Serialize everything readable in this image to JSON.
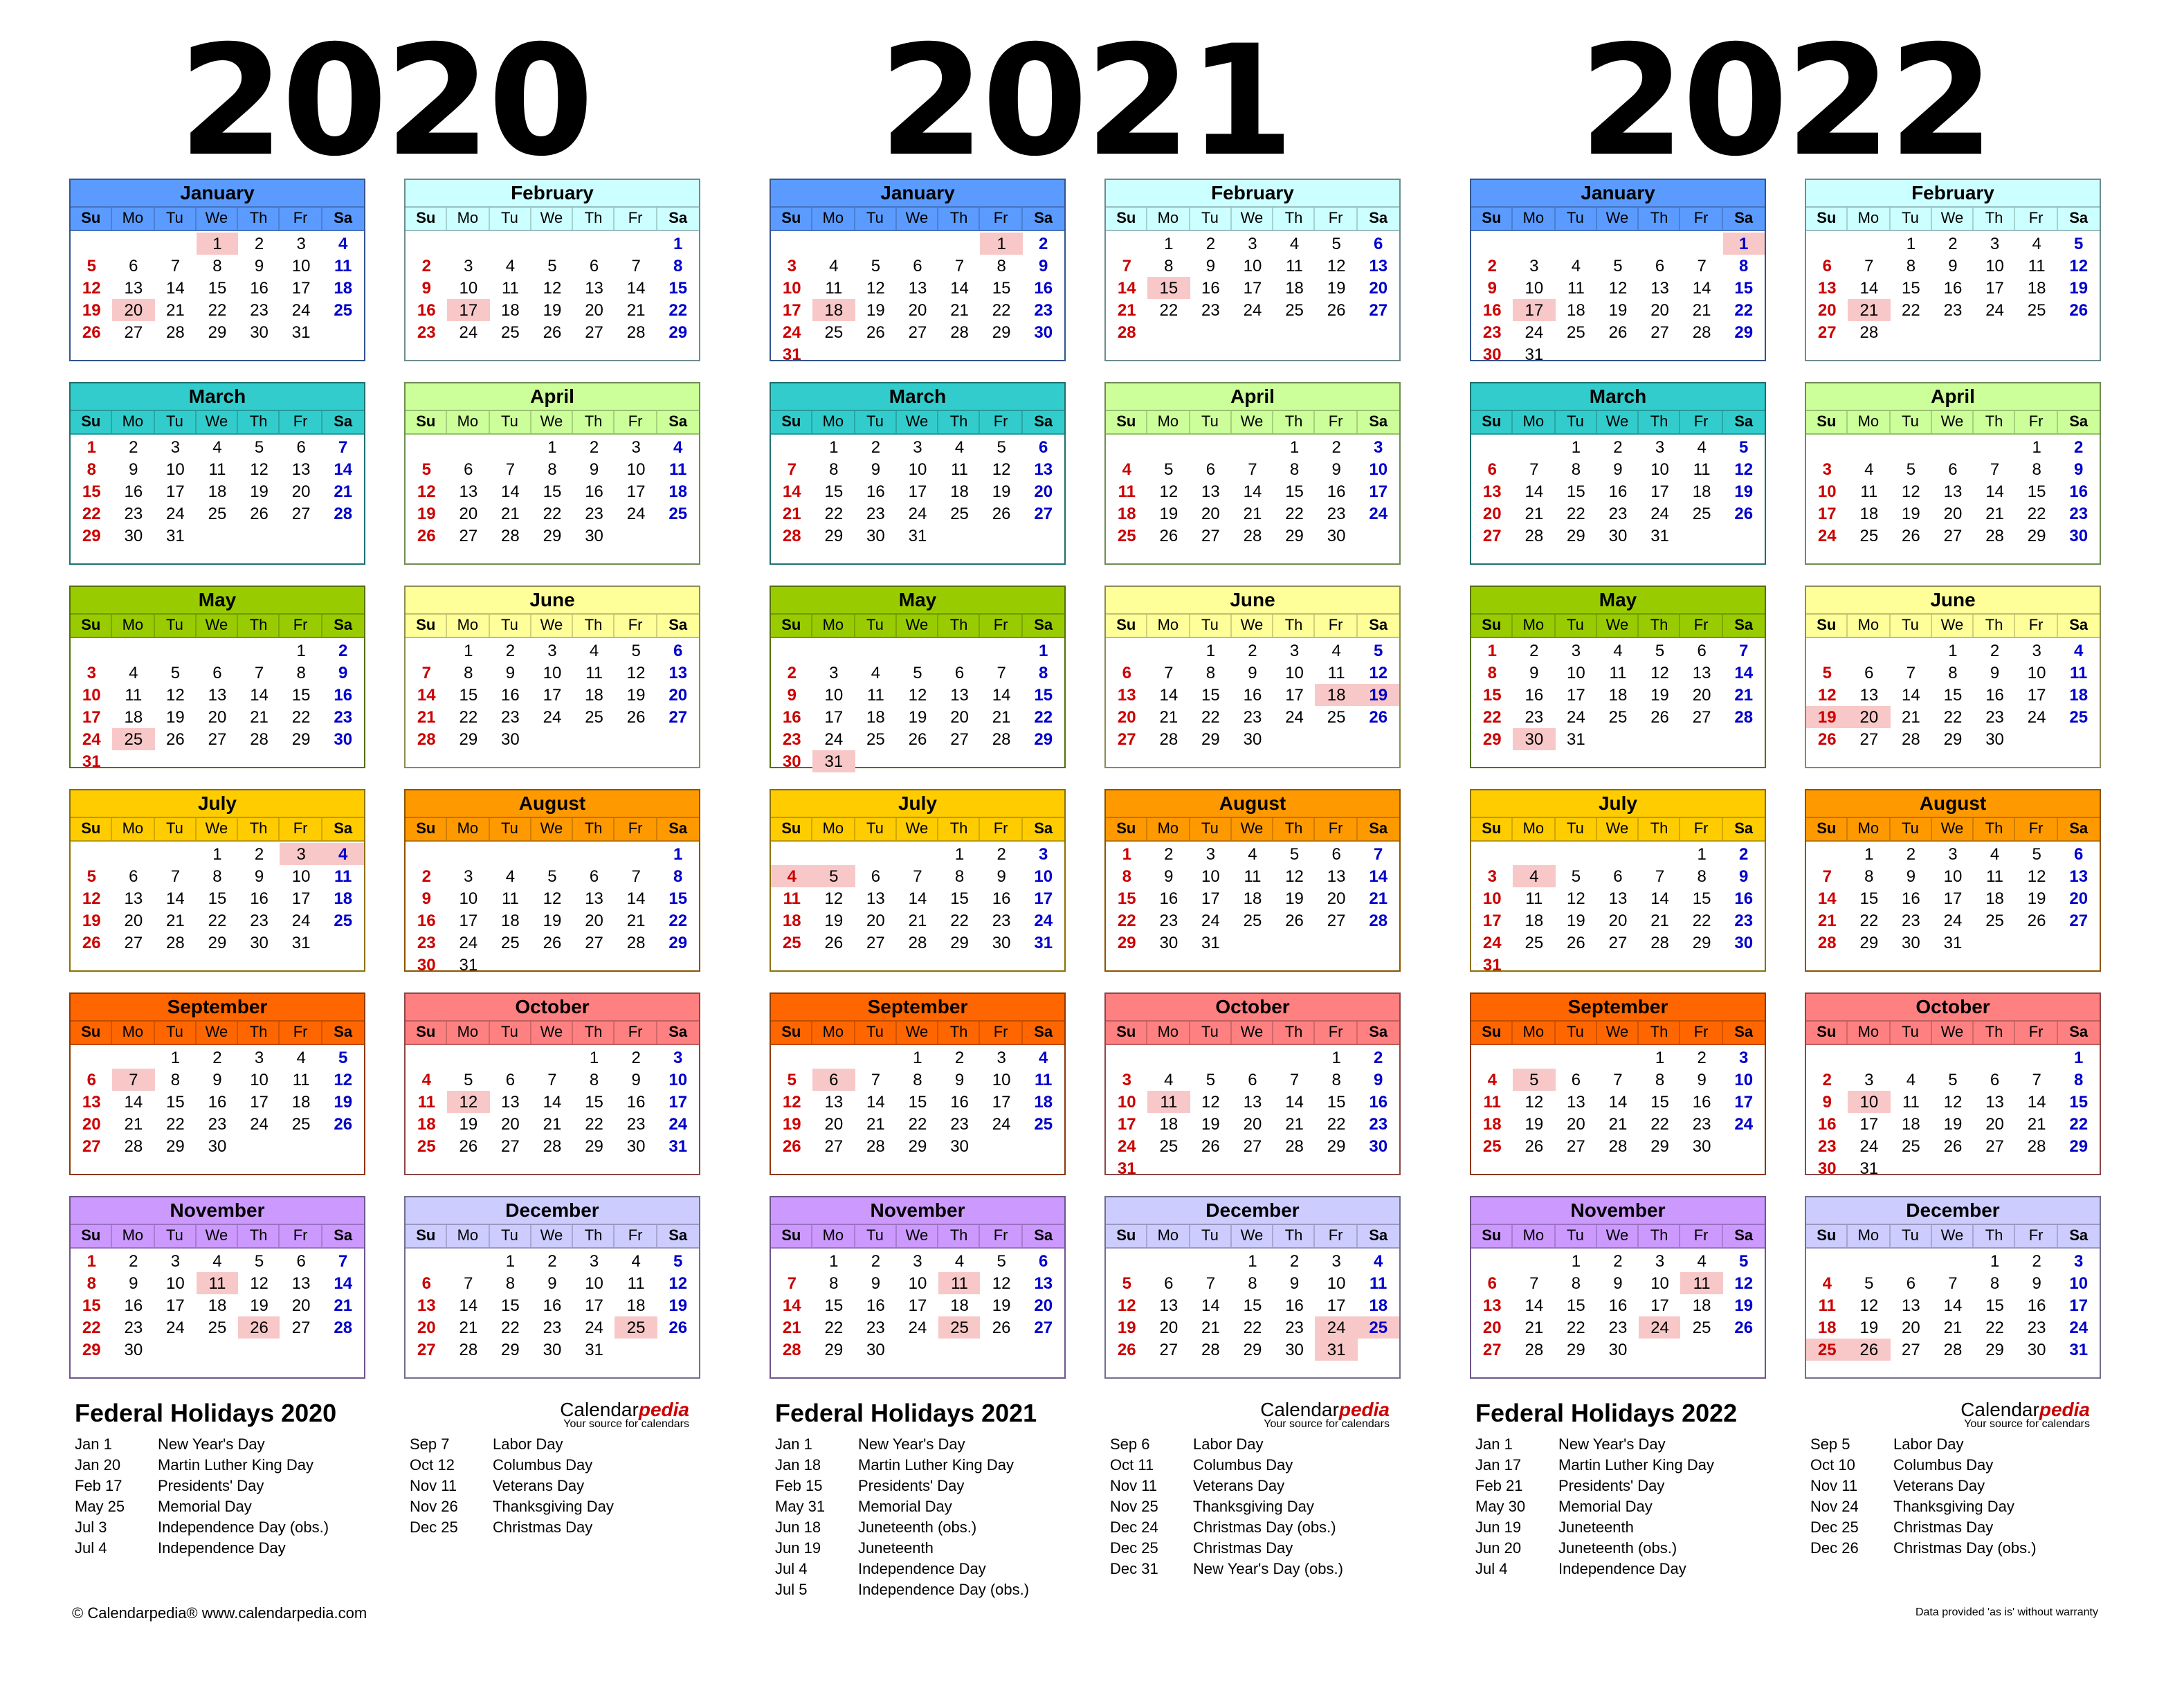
{
  "years": [
    "2020",
    "2021",
    "2022"
  ],
  "month_names": [
    "January",
    "February",
    "March",
    "April",
    "May",
    "June",
    "July",
    "August",
    "September",
    "October",
    "November",
    "December"
  ],
  "day_headers": [
    "Su",
    "Mo",
    "Tu",
    "We",
    "Th",
    "Fr",
    "Sa"
  ],
  "month_colors": [
    "#5b9bff",
    "#ccffff",
    "#33cccc",
    "#ccff99",
    "#99cc00",
    "#ffff99",
    "#ffcc00",
    "#ff9900",
    "#ff6600",
    "#ff8080",
    "#cc99ff",
    "#ccccff"
  ],
  "holiday_highlight_color": "#f8c8c8",
  "holiday_dates": {
    "2020": [
      [
        0,
        1
      ],
      [
        0,
        20
      ],
      [
        1,
        17
      ],
      [
        4,
        25
      ],
      [
        6,
        3
      ],
      [
        6,
        4
      ],
      [
        8,
        7
      ],
      [
        9,
        12
      ],
      [
        10,
        11
      ],
      [
        10,
        26
      ],
      [
        11,
        25
      ]
    ],
    "2021": [
      [
        0,
        1
      ],
      [
        0,
        18
      ],
      [
        1,
        15
      ],
      [
        4,
        31
      ],
      [
        5,
        18
      ],
      [
        5,
        19
      ],
      [
        6,
        4
      ],
      [
        6,
        5
      ],
      [
        8,
        6
      ],
      [
        9,
        11
      ],
      [
        10,
        11
      ],
      [
        10,
        25
      ],
      [
        11,
        24
      ],
      [
        11,
        25
      ],
      [
        11,
        31
      ]
    ],
    "2022": [
      [
        0,
        1
      ],
      [
        0,
        17
      ],
      [
        1,
        21
      ],
      [
        4,
        30
      ],
      [
        5,
        19
      ],
      [
        5,
        20
      ],
      [
        6,
        4
      ],
      [
        8,
        5
      ],
      [
        9,
        10
      ],
      [
        10,
        11
      ],
      [
        10,
        24
      ],
      [
        11,
        25
      ],
      [
        11,
        26
      ]
    ]
  },
  "holidays": {
    "2020": {
      "title": "Federal Holidays 2020",
      "left": [
        [
          "Jan 1",
          "New Year's Day"
        ],
        [
          "Jan 20",
          "Martin Luther King Day"
        ],
        [
          "Feb 17",
          "Presidents' Day"
        ],
        [
          "May 25",
          "Memorial Day"
        ],
        [
          "Jul 3",
          "Independence Day (obs.)"
        ],
        [
          "Jul 4",
          "Independence Day"
        ]
      ],
      "right": [
        [
          "Sep 7",
          "Labor Day"
        ],
        [
          "Oct 12",
          "Columbus Day"
        ],
        [
          "Nov 11",
          "Veterans Day"
        ],
        [
          "Nov 26",
          "Thanksgiving Day"
        ],
        [
          "Dec 25",
          "Christmas Day"
        ]
      ]
    },
    "2021": {
      "title": "Federal Holidays 2021",
      "left": [
        [
          "Jan 1",
          "New Year's Day"
        ],
        [
          "Jan 18",
          "Martin Luther King Day"
        ],
        [
          "Feb 15",
          "Presidents' Day"
        ],
        [
          "May 31",
          "Memorial Day"
        ],
        [
          "Jun 18",
          "Juneteenth (obs.)"
        ],
        [
          "Jun 19",
          "Juneteenth"
        ],
        [
          "Jul 4",
          "Independence Day"
        ],
        [
          "Jul 5",
          "Independence Day (obs.)"
        ]
      ],
      "right": [
        [
          "Sep 6",
          "Labor Day"
        ],
        [
          "Oct 11",
          "Columbus Day"
        ],
        [
          "Nov 11",
          "Veterans Day"
        ],
        [
          "Nov 25",
          "Thanksgiving Day"
        ],
        [
          "Dec 24",
          "Christmas Day (obs.)"
        ],
        [
          "Dec 25",
          "Christmas Day"
        ],
        [
          "Dec 31",
          "New Year's Day (obs.)"
        ]
      ]
    },
    "2022": {
      "title": "Federal Holidays 2022",
      "left": [
        [
          "Jan 1",
          "New Year's Day"
        ],
        [
          "Jan 17",
          "Martin Luther King Day"
        ],
        [
          "Feb 21",
          "Presidents' Day"
        ],
        [
          "May 30",
          "Memorial Day"
        ],
        [
          "Jun 19",
          "Juneteenth"
        ],
        [
          "Jun 20",
          "Juneteenth (obs.)"
        ],
        [
          "Jul 4",
          "Independence Day"
        ]
      ],
      "right": [
        [
          "Sep 5",
          "Labor Day"
        ],
        [
          "Oct 10",
          "Columbus Day"
        ],
        [
          "Nov 11",
          "Veterans Day"
        ],
        [
          "Nov 24",
          "Thanksgiving Day"
        ],
        [
          "Dec 25",
          "Christmas Day"
        ],
        [
          "Dec 26",
          "Christmas Day (obs.)"
        ]
      ]
    }
  },
  "brand": {
    "name_plain": "Calendar",
    "name_accent": "pedia",
    "tagline": "Your source for calendars"
  },
  "footer": {
    "copyright": "© Calendarpedia®   www.calendarpedia.com",
    "disclaimer": "Data provided 'as is' without warranty"
  }
}
